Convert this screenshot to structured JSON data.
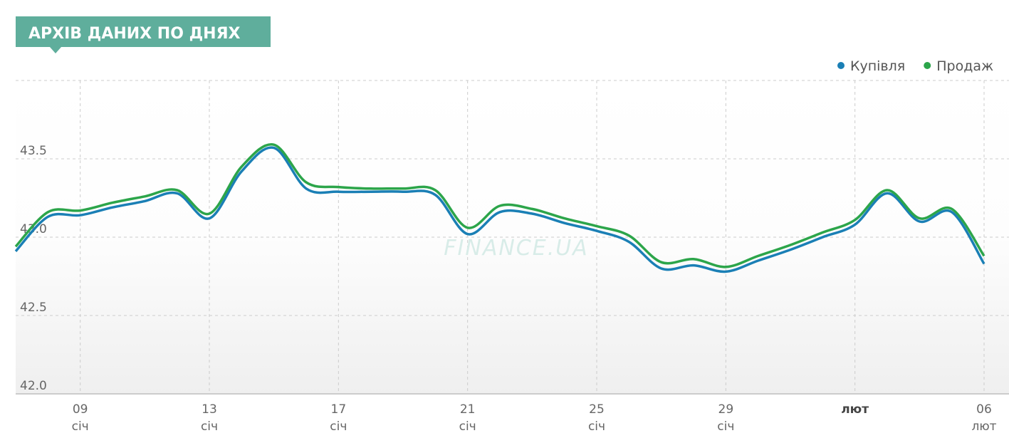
{
  "header": {
    "title": "АРХІВ ДАНИХ ПО ДНЯХ"
  },
  "chart_data": {
    "type": "line",
    "watermark": "FINANCE.UA",
    "categories": [
      null,
      null,
      [
        "09",
        "січ"
      ],
      null,
      null,
      null,
      [
        "13",
        "січ"
      ],
      null,
      null,
      null,
      [
        "17",
        "січ"
      ],
      null,
      null,
      null,
      [
        "21",
        "січ"
      ],
      null,
      null,
      null,
      [
        "25",
        "січ"
      ],
      null,
      null,
      null,
      [
        "29",
        "січ"
      ],
      null,
      null,
      null,
      [
        "лют"
      ],
      null,
      null,
      null,
      [
        "06",
        "лют"
      ]
    ],
    "series": [
      {
        "name": "Купівля",
        "color": "#1a7fb5",
        "values": [
          42.91,
          43.13,
          43.14,
          43.19,
          43.23,
          43.28,
          43.12,
          43.42,
          43.57,
          43.31,
          43.29,
          43.29,
          43.29,
          43.27,
          43.02,
          43.16,
          43.15,
          43.09,
          43.04,
          42.97,
          42.8,
          42.82,
          42.78,
          42.85,
          42.92,
          43.0,
          43.08,
          43.28,
          43.1,
          43.16,
          42.83
        ]
      },
      {
        "name": "Продаж",
        "color": "#2ca54a",
        "values": [
          42.94,
          43.16,
          43.17,
          43.22,
          43.26,
          43.3,
          43.15,
          43.45,
          43.59,
          43.35,
          43.32,
          43.31,
          43.31,
          43.3,
          43.06,
          43.2,
          43.18,
          43.12,
          43.07,
          43.01,
          42.84,
          42.86,
          42.81,
          42.88,
          42.95,
          43.03,
          43.11,
          43.3,
          43.12,
          43.18,
          42.88
        ]
      }
    ],
    "ylim": [
      42.0,
      44.0
    ],
    "yticks": [
      {
        "value": 42.0,
        "label": "42.0"
      },
      42.5,
      {
        "value": 43.0,
        "label": "43.0"
      },
      43.5
    ],
    "grid": true,
    "legend": "top-right"
  }
}
